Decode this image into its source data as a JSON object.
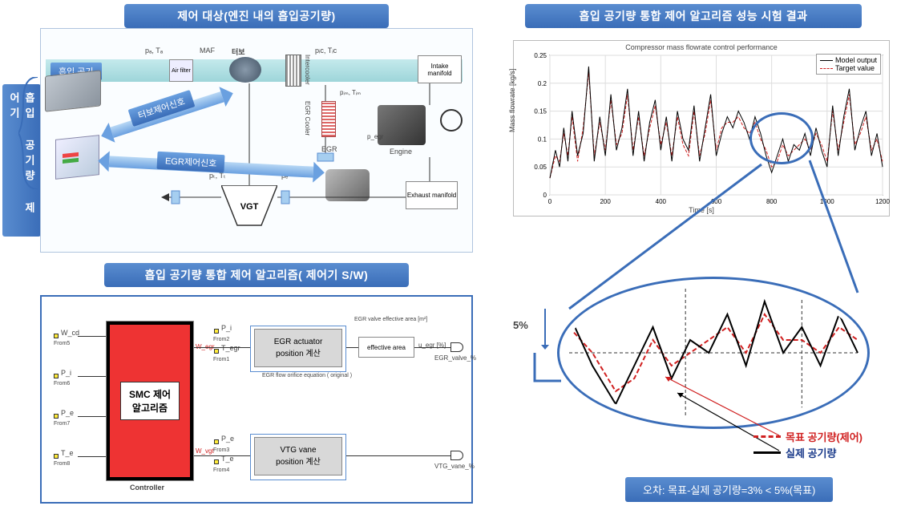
{
  "vert_label": "흡입 공기량 제어기",
  "top_left": {
    "title": "제어 대상(엔진 내의 흡입공기량)",
    "intake_air_label": "흡입 공기",
    "signal_turbo": "터보제어신호",
    "signal_egr": "EGR제어신호",
    "comp_air_filter": "Air filter",
    "comp_turbo": "터보",
    "comp_maf": "MAF",
    "comp_intercooler": "Intercooler",
    "comp_egr_cooler": "EGR Cooler",
    "comp_egr": "EGR",
    "comp_intake_mani": "Intake manifold",
    "comp_exhaust_mani": "Exhaust manifold",
    "comp_engine": "Engine",
    "comp_vgt": "VGT",
    "var_p_a": "pₐ, Tₐ",
    "var_p_ic": "pᵢc, Tᵢc",
    "var_p_im": "pᵢₘ, Tᵢₘ",
    "var_p_egr": "p_egr",
    "var_p_t": "pₜ, Tₜ",
    "var_p_e": "pₑ"
  },
  "bottom_left": {
    "title": "흡입 공기량 통합 제어 알고리즘( 제어기 S/W)",
    "inputs": [
      "W_cd",
      "P_i",
      "P_e",
      "T_e"
    ],
    "from_labels": [
      "From5",
      "From6",
      "From7",
      "From8"
    ],
    "alg_main": "SMC 제어\n알고리즘",
    "alg_controller": "Controller",
    "outputs_mid": [
      "W_egr",
      "W_vgt"
    ],
    "block_egr": "EGR actuator\nposition 계산",
    "block_vtg": "VTG vane\nposition 계산",
    "sublabel_egr_top": "EGR valve effective area [m²]",
    "sublabel_egr_orifice": "EGR flow orifice equation ( original )",
    "sublabel_effective": "effective area",
    "out_egr": "EGR_valve_%",
    "out_vtg": "VTG_vane_%",
    "mid_u_egr": "u_egr [%]",
    "aux_inputs": [
      "P_i",
      "T_egr",
      "P_e",
      "T_e"
    ],
    "from_aux": [
      "From2",
      "From1",
      "From3",
      "From4"
    ]
  },
  "top_right": {
    "title": "흡입 공기량 통합 제어 알고리즘 성능 시험 결과",
    "chart_title": "Compressor mass flowrate control performance",
    "ylabel": "Mass flowrate [kg/s]",
    "xlabel": "Time [s]",
    "ylim": [
      0,
      0.25
    ],
    "ytick": [
      0,
      0.05,
      0.1,
      0.15,
      0.2,
      0.25
    ],
    "xlim": [
      0,
      1200
    ],
    "xtick": [
      0,
      200,
      400,
      600,
      800,
      1000,
      1200
    ],
    "legend": [
      "Model output",
      "Target value"
    ],
    "colors": {
      "model": "#000000",
      "target": "#d02020",
      "grid": "#dddddd"
    },
    "series_t": [
      0,
      20,
      35,
      50,
      65,
      80,
      100,
      120,
      140,
      160,
      180,
      200,
      220,
      240,
      260,
      280,
      300,
      320,
      340,
      360,
      380,
      400,
      420,
      440,
      460,
      480,
      500,
      520,
      540,
      560,
      580,
      600,
      620,
      640,
      660,
      680,
      700,
      720,
      740,
      760,
      780,
      800,
      820,
      840,
      860,
      880,
      900,
      920,
      940,
      960,
      980,
      1000,
      1020,
      1040,
      1060,
      1080,
      1100,
      1120,
      1140,
      1160,
      1180,
      1200
    ],
    "series_model": [
      0.03,
      0.08,
      0.05,
      0.12,
      0.06,
      0.15,
      0.07,
      0.11,
      0.23,
      0.06,
      0.14,
      0.07,
      0.18,
      0.08,
      0.12,
      0.19,
      0.07,
      0.15,
      0.06,
      0.13,
      0.17,
      0.08,
      0.14,
      0.06,
      0.15,
      0.1,
      0.08,
      0.16,
      0.06,
      0.12,
      0.18,
      0.07,
      0.11,
      0.14,
      0.12,
      0.15,
      0.13,
      0.1,
      0.14,
      0.11,
      0.07,
      0.04,
      0.07,
      0.1,
      0.06,
      0.09,
      0.08,
      0.11,
      0.07,
      0.12,
      0.08,
      0.05,
      0.16,
      0.07,
      0.14,
      0.19,
      0.08,
      0.12,
      0.15,
      0.07,
      0.11,
      0.05
    ],
    "series_target": [
      0.03,
      0.07,
      0.06,
      0.11,
      0.07,
      0.14,
      0.06,
      0.12,
      0.22,
      0.07,
      0.13,
      0.08,
      0.17,
      0.09,
      0.11,
      0.18,
      0.08,
      0.14,
      0.07,
      0.12,
      0.16,
      0.09,
      0.13,
      0.07,
      0.14,
      0.09,
      0.07,
      0.15,
      0.07,
      0.11,
      0.17,
      0.08,
      0.12,
      0.13,
      0.13,
      0.14,
      0.12,
      0.11,
      0.13,
      0.1,
      0.08,
      0.05,
      0.06,
      0.09,
      0.07,
      0.08,
      0.09,
      0.1,
      0.08,
      0.11,
      0.09,
      0.06,
      0.15,
      0.08,
      0.13,
      0.18,
      0.09,
      0.11,
      0.14,
      0.08,
      0.1,
      0.06
    ],
    "zoom_center_t": 820
  },
  "bottom_right": {
    "pct_label": "5%",
    "legend_target": "목표 공기량(제어)",
    "legend_actual": "실제 공기량",
    "footer": "오차: 목표-실제 공기량=3% < 5%(목표)",
    "colors": {
      "target": "#d02020",
      "actual": "#000000",
      "blue": "#3a6db8"
    },
    "zoom_t": [
      760,
      770,
      780,
      788,
      796,
      804,
      812,
      820,
      828,
      836,
      844,
      852,
      860,
      868,
      876,
      884
    ],
    "zoom_model": [
      0.11,
      0.07,
      0.04,
      0.07,
      0.1,
      0.06,
      0.09,
      0.08,
      0.11,
      0.07,
      0.12,
      0.08,
      0.1,
      0.07,
      0.11,
      0.08
    ],
    "zoom_target": [
      0.1,
      0.08,
      0.05,
      0.06,
      0.09,
      0.07,
      0.08,
      0.09,
      0.1,
      0.08,
      0.11,
      0.09,
      0.09,
      0.08,
      0.1,
      0.09
    ],
    "zoom_ylim": [
      0.03,
      0.13
    ]
  }
}
